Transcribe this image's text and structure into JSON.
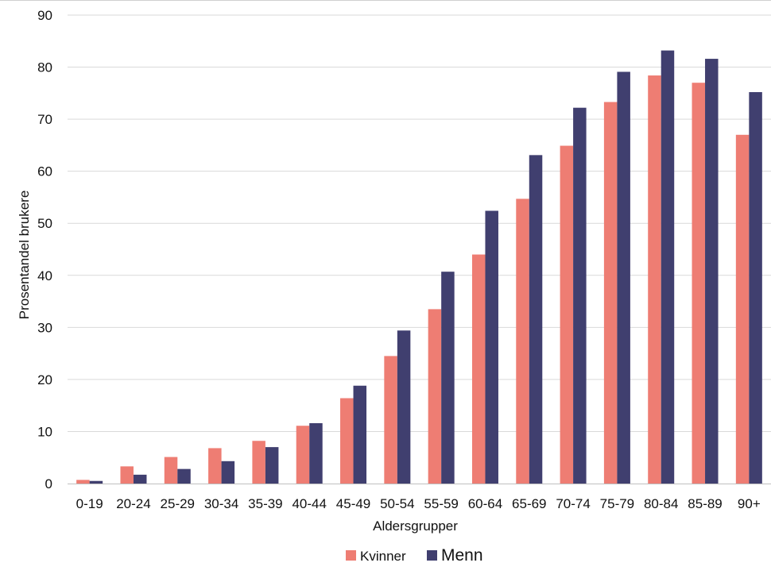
{
  "chart_data": {
    "type": "bar",
    "categories": [
      "0-19",
      "20-24",
      "25-29",
      "30-34",
      "35-39",
      "40-44",
      "45-49",
      "50-54",
      "55-59",
      "60-64",
      "65-69",
      "70-74",
      "75-79",
      "80-84",
      "85-89",
      "90+"
    ],
    "series": [
      {
        "name": "Kvinner",
        "color": "#EE7D73",
        "values": [
          0.7,
          3.3,
          5.1,
          6.8,
          8.2,
          11.1,
          16.4,
          24.5,
          33.5,
          44.0,
          54.7,
          64.9,
          73.3,
          78.4,
          77.0,
          67.0
        ]
      },
      {
        "name": "Menn",
        "color": "#403F6F",
        "values": [
          0.5,
          1.7,
          2.8,
          4.3,
          7.0,
          11.6,
          18.8,
          29.4,
          40.7,
          52.4,
          63.1,
          72.2,
          79.1,
          83.2,
          81.6,
          75.2
        ]
      }
    ],
    "xlabel": "Aldersgrupper",
    "ylabel": "Prosentandel brukere",
    "ylim": [
      0,
      90
    ],
    "yticks": [
      0,
      10,
      20,
      30,
      40,
      50,
      60,
      70,
      80,
      90
    ],
    "grid": true,
    "legend_position": "bottom-center",
    "gridline_color": "#D9D9D9"
  }
}
